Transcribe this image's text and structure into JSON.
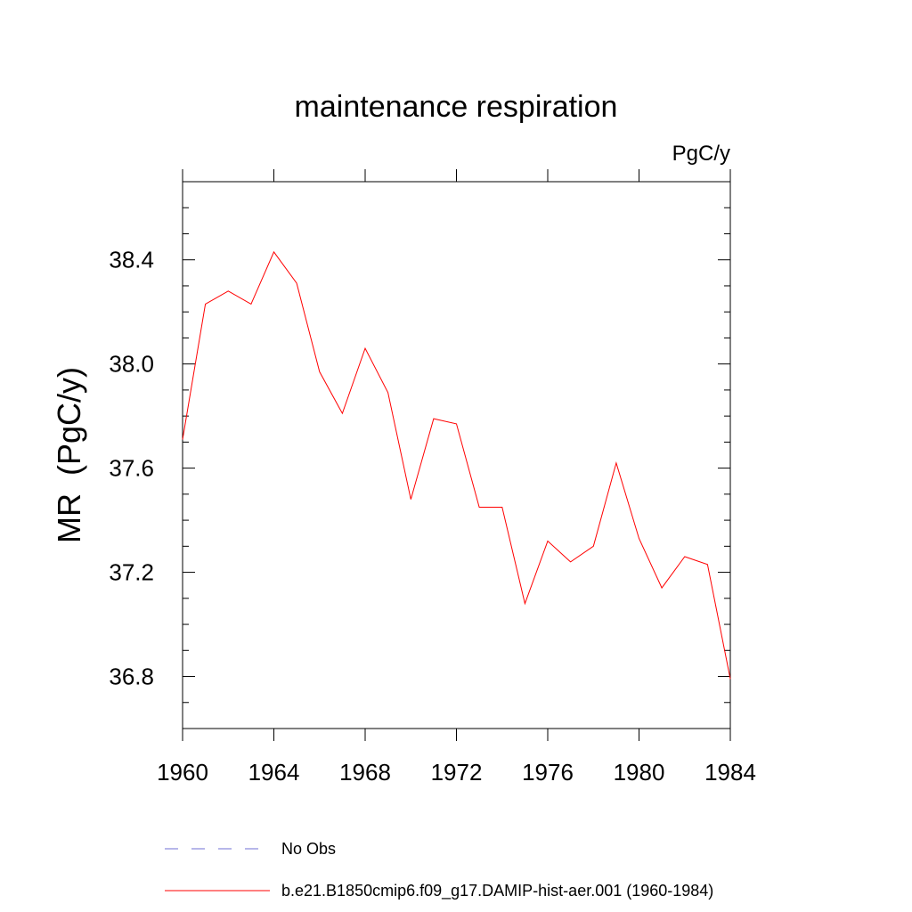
{
  "chart_data": {
    "type": "line",
    "title": "maintenance respiration",
    "units_label": "PgC/y",
    "ylabel": "MR  (PgC/y)",
    "xlabel": "",
    "xlim": [
      1960,
      1984
    ],
    "ylim": [
      36.6,
      38.7
    ],
    "x_ticks": [
      1960,
      1964,
      1968,
      1972,
      1976,
      1980,
      1984
    ],
    "x_tick_labels": [
      "1960",
      "1964",
      "1968",
      "1972",
      "1976",
      "1980",
      "1984"
    ],
    "y_ticks": [
      36.8,
      37.2,
      37.6,
      38.0,
      38.4
    ],
    "y_tick_labels": [
      "36.8",
      "37.2",
      "37.6",
      "38.0",
      "38.4"
    ],
    "grid": false,
    "legend_position": "bottom",
    "series": [
      {
        "name": "b.e21.B1850cmip6.f09_g17.DAMIP-hist-aer.001 (1960-1984)",
        "color": "#ff0000",
        "style": "solid",
        "x": [
          1960,
          1961,
          1962,
          1963,
          1964,
          1965,
          1966,
          1967,
          1968,
          1969,
          1970,
          1971,
          1972,
          1973,
          1974,
          1975,
          1976,
          1977,
          1978,
          1979,
          1980,
          1981,
          1982,
          1983,
          1984
        ],
        "y": [
          37.71,
          38.23,
          38.28,
          38.23,
          38.43,
          38.31,
          37.97,
          37.81,
          38.06,
          37.89,
          37.48,
          37.79,
          37.77,
          37.45,
          37.45,
          37.08,
          37.32,
          37.24,
          37.3,
          37.62,
          37.33,
          37.14,
          37.26,
          37.23,
          36.79
        ]
      }
    ],
    "legend": [
      {
        "label": "No Obs",
        "color": "#6f6fd6",
        "style": "dashed"
      },
      {
        "label": "b.e21.B1850cmip6.f09_g17.DAMIP-hist-aer.001 (1960-1984)",
        "color": "#ff0000",
        "style": "solid"
      }
    ]
  }
}
